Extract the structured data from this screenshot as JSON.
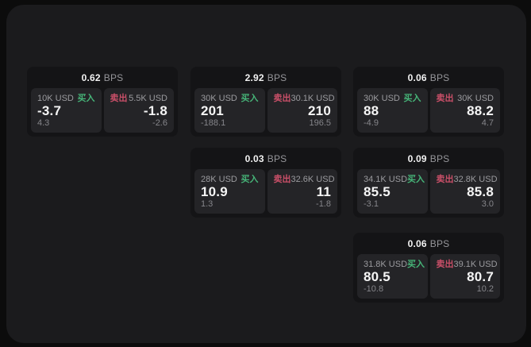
{
  "colors": {
    "page_bg": "#0c0c0c",
    "panel_bg": "#1b1b1d",
    "card_bg": "#141416",
    "sub_bg": "#242427",
    "label": "#9b9b9f",
    "muted": "#85858a",
    "value": "#f5f5f5",
    "buy": "#46b478",
    "sell": "#c94f68",
    "bps": "#96969a"
  },
  "labels": {
    "buy": "买入",
    "sell": "卖出",
    "bps_unit": "BPS"
  },
  "cards": [
    {
      "col": 0,
      "row": 0,
      "bps": "0.62",
      "buy": {
        "amount": "10K USD",
        "price": "-3.7",
        "delta": "4.3"
      },
      "sell": {
        "amount": "5.5K USD",
        "price": "-1.8",
        "delta": "-2.6"
      }
    },
    {
      "col": 1,
      "row": 0,
      "bps": "2.92",
      "buy": {
        "amount": "30K USD",
        "price": "201",
        "delta": "-188.1"
      },
      "sell": {
        "amount": "30.1K USD",
        "price": "210",
        "delta": "196.5"
      }
    },
    {
      "col": 2,
      "row": 0,
      "bps": "0.06",
      "buy": {
        "amount": "30K USD",
        "price": "88",
        "delta": "-4.9"
      },
      "sell": {
        "amount": "30K USD",
        "price": "88.2",
        "delta": "4.7"
      }
    },
    {
      "col": 1,
      "row": 1,
      "bps": "0.03",
      "buy": {
        "amount": "28K USD",
        "price": "10.9",
        "delta": "1.3"
      },
      "sell": {
        "amount": "32.6K USD",
        "price": "11",
        "delta": "-1.8"
      }
    },
    {
      "col": 2,
      "row": 1,
      "bps": "0.09",
      "buy": {
        "amount": "34.1K USD",
        "price": "85.5",
        "delta": "-3.1"
      },
      "sell": {
        "amount": "32.8K USD",
        "price": "85.8",
        "delta": "3.0"
      }
    },
    {
      "col": 2,
      "row": 2,
      "bps": "0.06",
      "buy": {
        "amount": "31.8K USD",
        "price": "80.5",
        "delta": "-10.8"
      },
      "sell": {
        "amount": "39.1K USD",
        "price": "80.7",
        "delta": "10.2"
      }
    }
  ]
}
